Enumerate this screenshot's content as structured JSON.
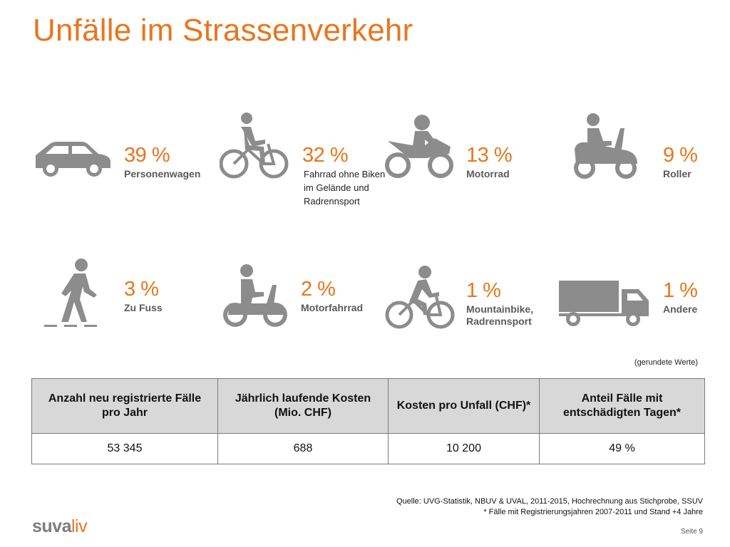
{
  "title": "Unfälle im Strassenverkehr",
  "accent_color": "#e8761e",
  "icon_color": "#8c8c8c",
  "categories": [
    {
      "icon": "car-icon",
      "percent": "39 %",
      "label": "Personenwagen",
      "note": ""
    },
    {
      "icon": "bicycle-icon",
      "percent": "32 %",
      "label": "",
      "note": "Fahrrad ohne Biken im Gelände und Radrennsport"
    },
    {
      "icon": "motorcycle-icon",
      "percent": "13 %",
      "label": "Motorrad",
      "note": ""
    },
    {
      "icon": "scooter-icon",
      "percent": "9 %",
      "label": "Roller",
      "note": ""
    },
    {
      "icon": "pedestrian-icon",
      "percent": "3 %",
      "label": "Zu Fuss",
      "note": ""
    },
    {
      "icon": "moped-icon",
      "percent": "2 %",
      "label": "Motorfahrrad",
      "note": ""
    },
    {
      "icon": "mountainbike-icon",
      "percent": "1 %",
      "label": "Mountainbike, Radrennsport",
      "note": ""
    },
    {
      "icon": "truck-icon",
      "percent": "1 %",
      "label": "Andere",
      "note": ""
    }
  ],
  "rounded_note": "(gerundete Werte)",
  "table": {
    "headers": [
      "Anzahl neu registrierte Fälle pro Jahr",
      "Jährlich laufende Kosten (Mio. CHF)",
      "Kosten pro Unfall (CHF)*",
      "Anteil Fälle mit entschädigten Tagen*"
    ],
    "values": [
      "53 345",
      "688",
      "10 200",
      "49 %"
    ]
  },
  "source_line1": "Quelle: UVG-Statistik, NBUV & UVAL, 2011-2015, Hochrechnung aus Stichprobe, SSUV",
  "source_line2": "* Fälle mit Registrierungsjahren 2007-2011 und Stand +4 Jahre",
  "logo_part1": "suva",
  "logo_part2": "liv",
  "page_label": "Seite 9"
}
